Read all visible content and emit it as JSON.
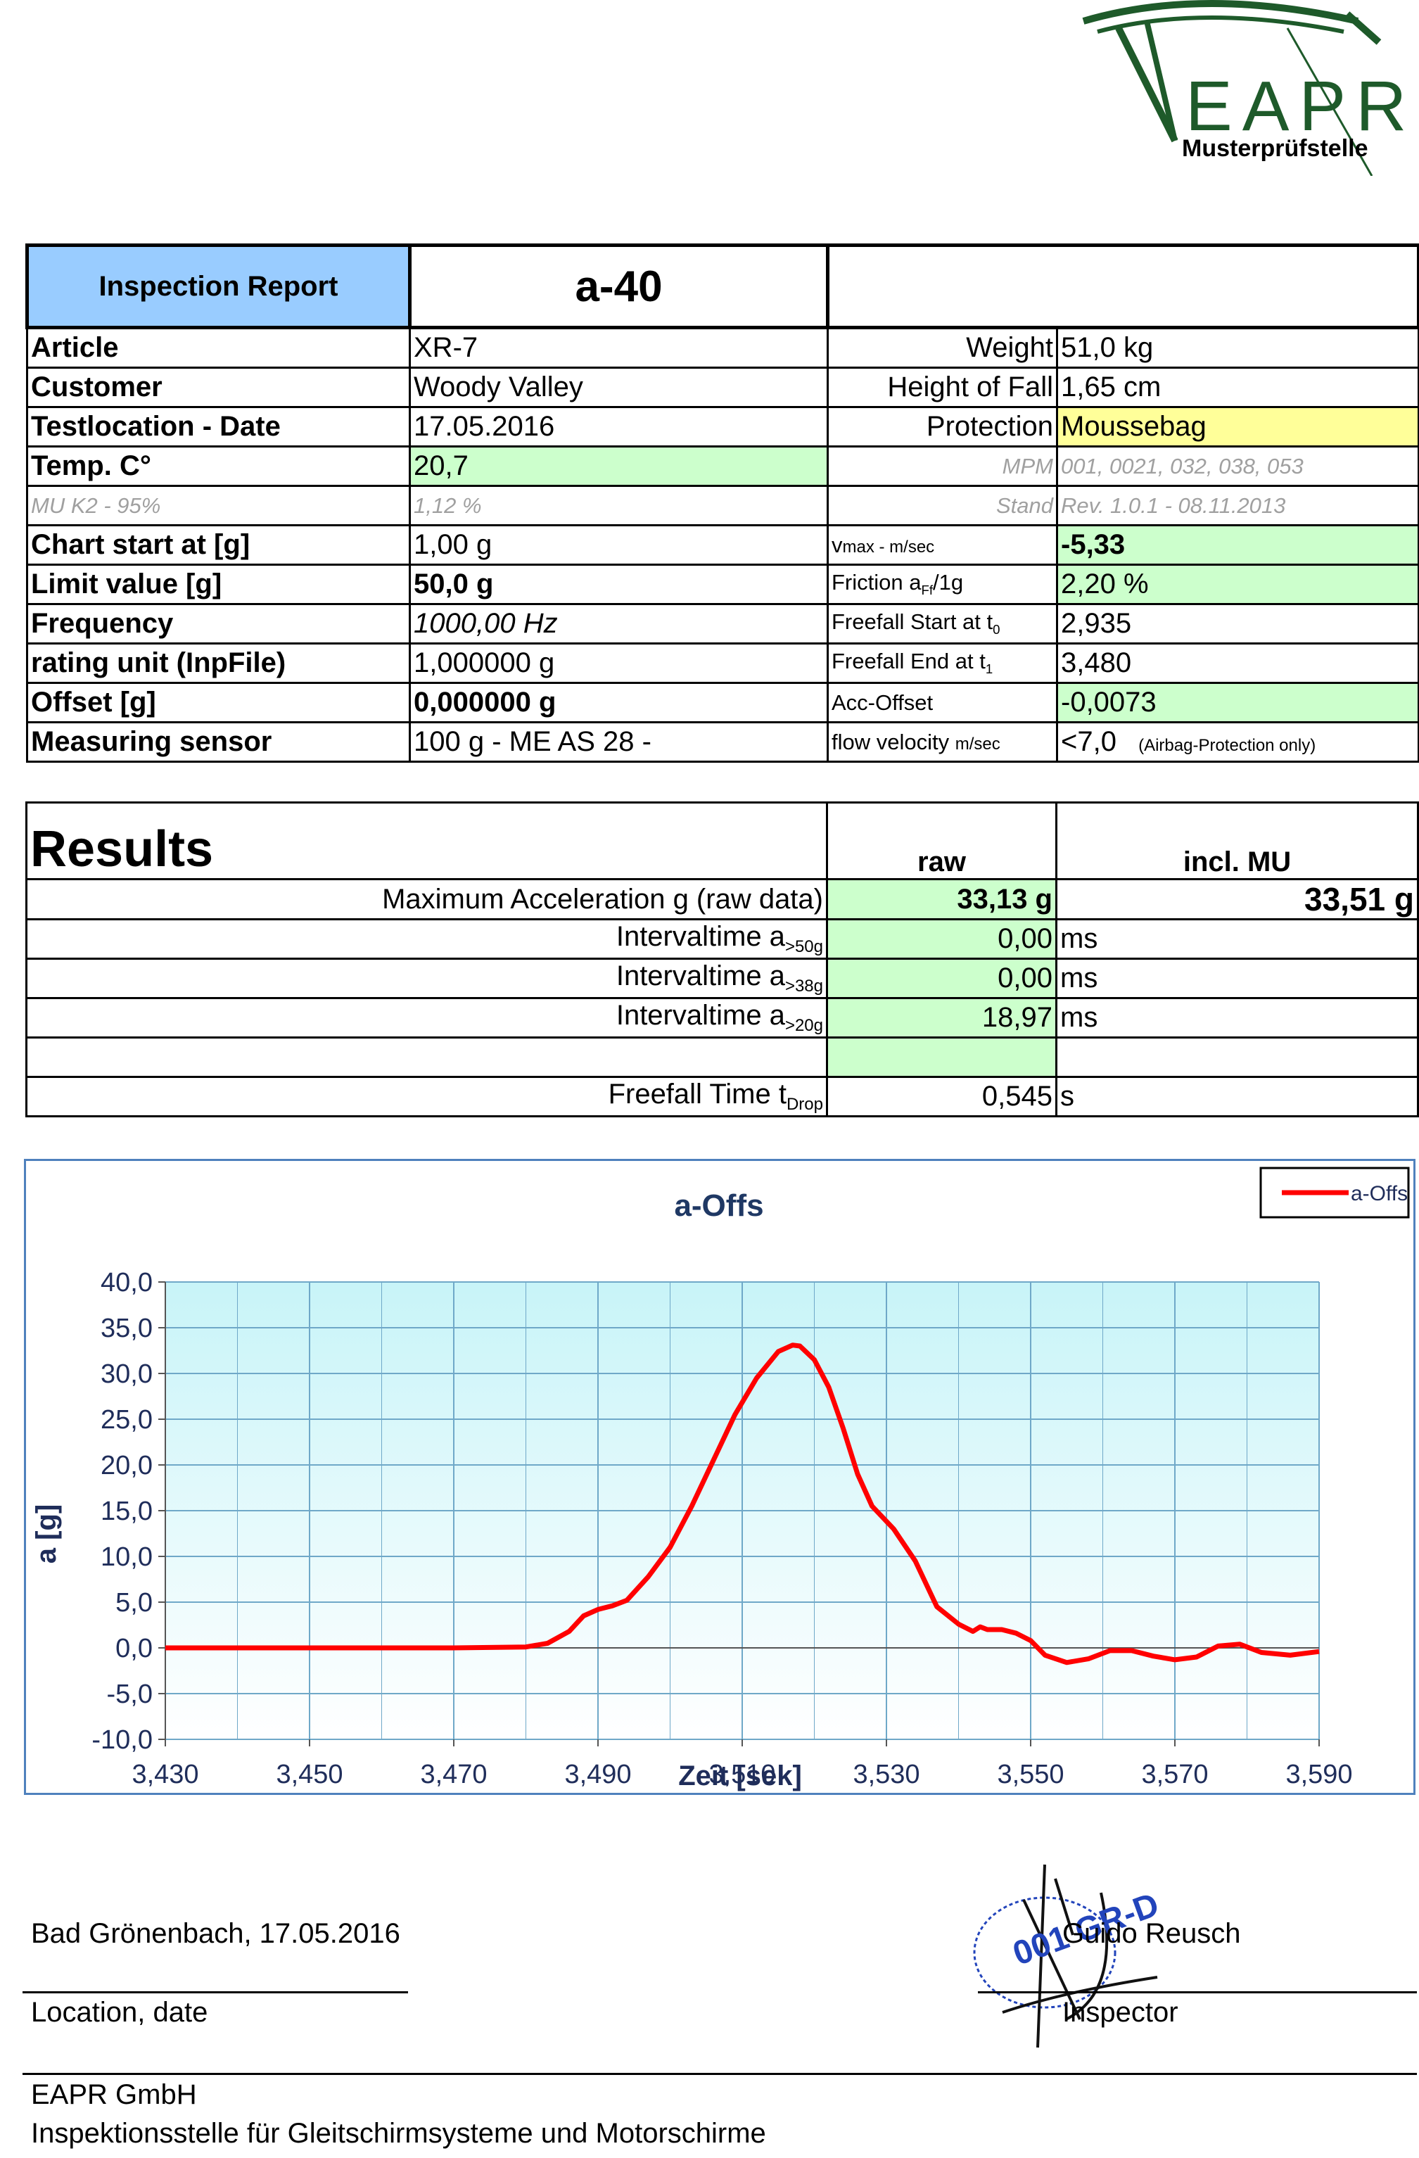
{
  "logo": {
    "text": "EAPR",
    "subtitle": "Musterprüfstelle",
    "color": "#1e5a2a"
  },
  "header": {
    "report_label": "Inspection Report",
    "report_id": "a-40",
    "rows": [
      {
        "l1": "Article",
        "v1": "XR-7",
        "l2": "Weight",
        "v2": "51,0 kg"
      },
      {
        "l1": "Customer",
        "v1": "Woody Valley",
        "l2": "Height of Fall",
        "v2": "1,65 cm"
      },
      {
        "l1": "Testlocation - Date",
        "v1": "17.05.2016",
        "l2": "Protection",
        "v2": "Moussebag"
      },
      {
        "l1": "Temp. C°",
        "v1": "20,7",
        "l2": "MPM",
        "v2": "001, 0021, 032, 038, 053"
      },
      {
        "l1": "MU K2 - 95%",
        "v1": "1,12 %",
        "l2": "Stand",
        "v2": "Rev. 1.0.1 - 08.11.2013"
      },
      {
        "l1": "Chart start at [g]",
        "v1": "1,00 g",
        "l2": "v",
        "l2sub": "max - m/sec",
        "v2": "-5,33"
      },
      {
        "l1": "Limit value [g]",
        "v1": "50,0 g",
        "l2": "Friction a",
        "l2sub": "Ff",
        "l2tail": "/1g",
        "v2": "2,20 %"
      },
      {
        "l1": "Frequency",
        "v1": "1000,00 Hz",
        "l2": "Freefall Start at t",
        "l2sub": "0",
        "v2": "2,935"
      },
      {
        "l1": "rating unit (InpFile)",
        "v1": "1,000000 g",
        "l2": "Freefall End at t",
        "l2sub": "1",
        "v2": "3,480"
      },
      {
        "l1": "Offset [g]",
        "v1": "0,000000 g",
        "l2": "Acc-Offset",
        "v2": "-0,0073"
      },
      {
        "l1": "Measuring sensor",
        "v1": "100 g - ME AS 28 -",
        "l2": "flow velocity",
        "l2sub": "m/sec",
        "v2": "<7,0",
        "v2note": "(Airbag-Protection only)"
      }
    ]
  },
  "results": {
    "title": "Results",
    "col_raw": "raw",
    "col_mu": "incl. MU",
    "max_acc_label": "Maximum Acceleration g (raw data)",
    "max_acc_raw": "33,13 g",
    "max_acc_mu": "33,51 g",
    "intervals": [
      {
        "label": "Intervaltime a",
        "sub": ">50g",
        "value": "0,00",
        "unit": "ms"
      },
      {
        "label": "Intervaltime a",
        "sub": ">38g",
        "value": "0,00",
        "unit": "ms"
      },
      {
        "label": "Intervaltime a",
        "sub": ">20g",
        "value": "18,97",
        "unit": "ms"
      }
    ],
    "freefall_label": "Freefall Time t",
    "freefall_sub": "Drop",
    "freefall_value": "0,545",
    "freefall_unit": "s"
  },
  "chart_data": {
    "type": "line",
    "title": "a-Offs",
    "xlabel": "Zeit [sek]",
    "ylabel": "a [g]",
    "legend": "top-right",
    "grid": true,
    "xlim": [
      3.43,
      3.59
    ],
    "ylim": [
      -10,
      40
    ],
    "x_ticks": [
      "3,430",
      "3,450",
      "3,470",
      "3,490",
      "3,510",
      "3,530",
      "3,550",
      "3,570",
      "3,590"
    ],
    "y_ticks": [
      "40,0",
      "35,0",
      "30,0",
      "25,0",
      "20,0",
      "15,0",
      "10,0",
      "5,0",
      "0,0",
      "-5,0",
      "-10,0"
    ],
    "colors": {
      "line": "#ff0000",
      "plot_bg_top": "#c8f4f8",
      "plot_bg_bottom": "#ffffff",
      "grid": "#6fa8c8",
      "axis_text": "#1f2d5a",
      "title": "#1f3864"
    },
    "series": [
      {
        "name": "a-Offs",
        "x": [
          3.43,
          3.44,
          3.45,
          3.46,
          3.47,
          3.48,
          3.483,
          3.486,
          3.488,
          3.49,
          3.492,
          3.494,
          3.497,
          3.5,
          3.503,
          3.506,
          3.509,
          3.512,
          3.515,
          3.517,
          3.518,
          3.52,
          3.522,
          3.524,
          3.526,
          3.528,
          3.531,
          3.534,
          3.537,
          3.54,
          3.542,
          3.543,
          3.544,
          3.546,
          3.548,
          3.55,
          3.552,
          3.555,
          3.558,
          3.561,
          3.564,
          3.567,
          3.57,
          3.573,
          3.576,
          3.579,
          3.582,
          3.586,
          3.59
        ],
        "y": [
          0.0,
          0.0,
          0.0,
          0.0,
          0.0,
          0.1,
          0.5,
          1.8,
          3.5,
          4.2,
          4.6,
          5.2,
          7.8,
          11.0,
          15.5,
          20.5,
          25.5,
          29.5,
          32.4,
          33.1,
          33.0,
          31.5,
          28.5,
          24.0,
          19.0,
          15.5,
          13.0,
          9.5,
          4.5,
          2.6,
          1.8,
          2.3,
          2.0,
          2.0,
          1.6,
          0.8,
          -0.8,
          -1.6,
          -1.2,
          -0.3,
          -0.3,
          -0.9,
          -1.3,
          -1.0,
          0.2,
          0.4,
          -0.5,
          -0.8,
          -0.4
        ]
      }
    ]
  },
  "footer": {
    "place_date": "Bad Grönenbach, 17.05.2016",
    "place_caption": "Location, date",
    "inspector_name": "Guido Reusch",
    "inspector_caption": "Inspector",
    "stamp_text": "001 GR-D",
    "company": "EAPR GmbH",
    "company_desc": "Inspektionsstelle für Gleitschirmsysteme und Motorschirme"
  }
}
